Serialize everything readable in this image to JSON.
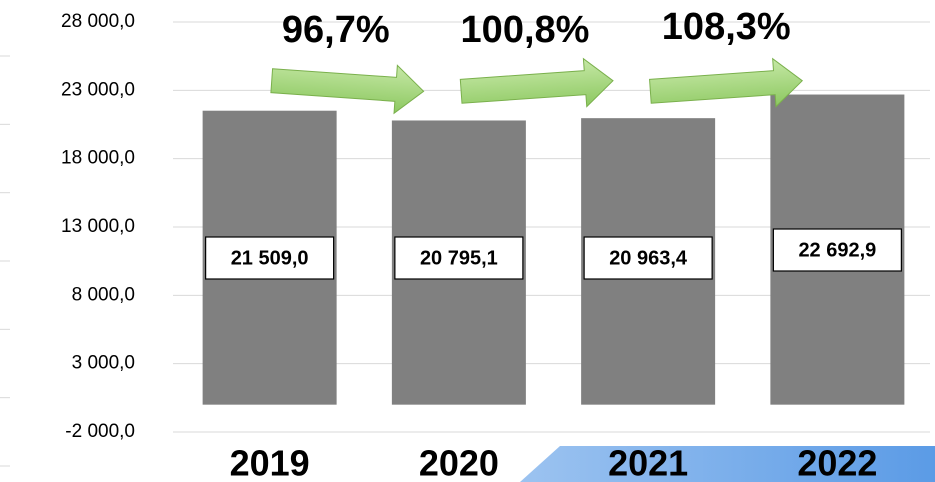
{
  "chart_data": {
    "type": "bar",
    "categories": [
      "2019",
      "2020",
      "2021",
      "2022"
    ],
    "values": [
      21509.0,
      20795.1,
      20963.4,
      22692.9
    ],
    "value_labels": [
      "21 509,0",
      "20 795,1",
      "20 963,4",
      "22 692,9"
    ],
    "color": "#808080",
    "ylim": [
      -2000,
      28000
    ],
    "yticks": [
      {
        "value": -2000,
        "label": "-2 000,0"
      },
      {
        "value": 3000,
        "label": "3 000,0"
      },
      {
        "value": 8000,
        "label": "8 000,0"
      },
      {
        "value": 13000,
        "label": "13 000,0"
      },
      {
        "value": 18000,
        "label": "18 000,0"
      },
      {
        "value": 23000,
        "label": "23 000,0"
      },
      {
        "value": 28000,
        "label": "28 000,0"
      }
    ],
    "grid": true,
    "annotations": [
      "96,7%",
      "100,8%",
      "108,3%"
    ]
  }
}
